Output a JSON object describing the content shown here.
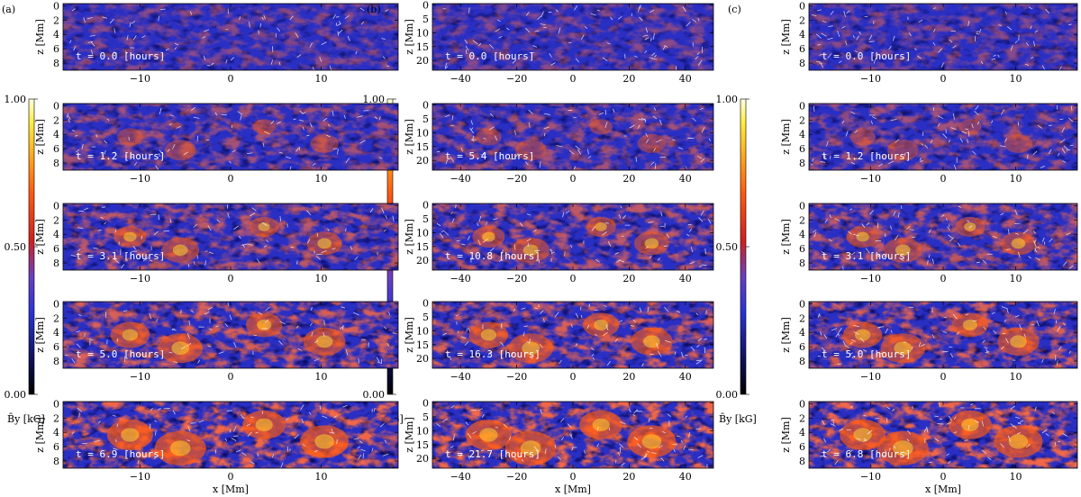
{
  "colorbar": {
    "label": "B̄y [kG]",
    "ticks": [
      "1.00",
      "0.50",
      "0.00"
    ],
    "tick_values": [
      1.0,
      0.5,
      0.0
    ],
    "range": [
      0,
      1
    ]
  },
  "panels": [
    {
      "label": "(a)",
      "x_ticks": [
        -10,
        0,
        10
      ],
      "x_range": [
        -18.5,
        18.5
      ],
      "z_ticks": [
        0,
        2,
        4,
        6,
        8
      ],
      "z_range": [
        -0.3,
        9.0
      ],
      "xlabel": "x [Mm]",
      "zlabel": "z [Mm]",
      "times": [
        "t = 0.0 [hours]",
        "t = 1.2 [hours]",
        "t = 3.1 [hours]",
        "t = 5.0 [hours]",
        "t = 6.9 [hours]"
      ]
    },
    {
      "label": "(b)",
      "x_ticks": [
        -40,
        -20,
        0,
        20,
        40
      ],
      "x_range": [
        -50,
        50
      ],
      "z_ticks": [
        0,
        5,
        10,
        15,
        20
      ],
      "z_range": [
        -0.5,
        23.5
      ],
      "xlabel": "x [Mm]",
      "zlabel": "z [Mm]",
      "times": [
        "t = 0.0 [hours]",
        "t = 5.4 [hours]",
        "t = 10.8 [hours]",
        "t = 16.3 [hours]",
        "t = 21.7 [hours]"
      ]
    },
    {
      "label": "(c)",
      "x_ticks": [
        -10,
        0,
        10
      ],
      "x_range": [
        -18.5,
        18.5
      ],
      "z_ticks": [
        0,
        2,
        4,
        6,
        8
      ],
      "z_range": [
        -0.3,
        9.0
      ],
      "xlabel": "x [Mm]",
      "zlabel": "z [Mm]",
      "times": [
        "t = 0.0 [hours]",
        "t = 1.2 [hours]",
        "t = 3.1 [hours]",
        "t = 5.0 [hours]",
        "t = 6.8 [hours]"
      ]
    }
  ]
}
